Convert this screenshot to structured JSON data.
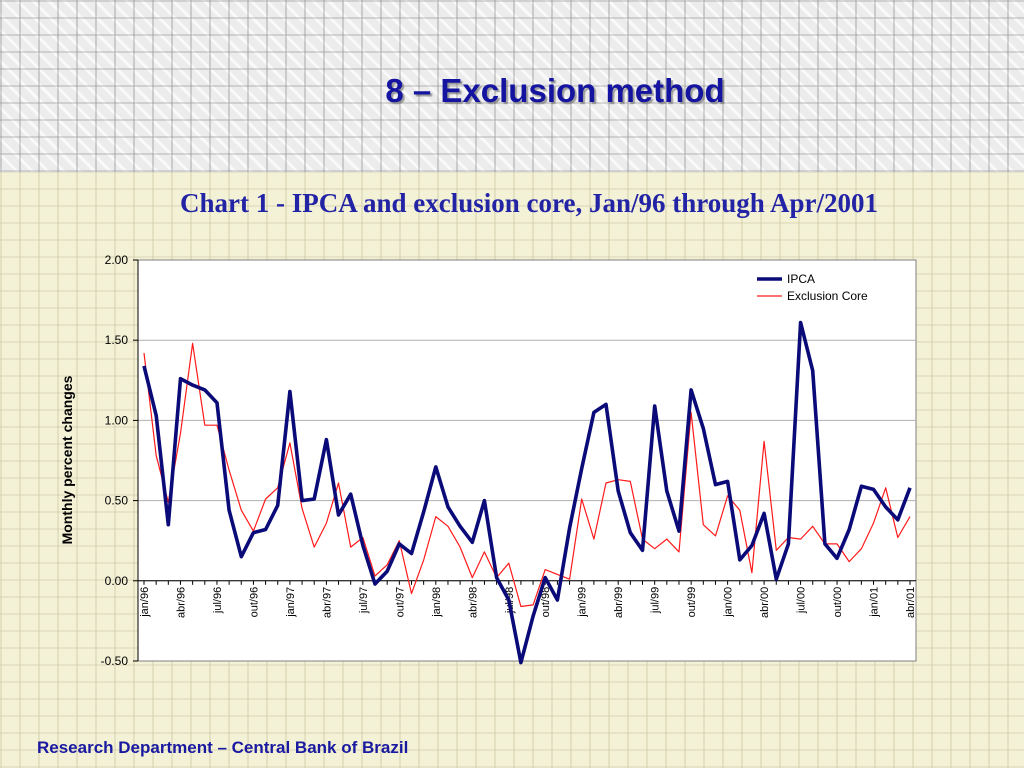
{
  "slide": {
    "title": "8 – Exclusion method",
    "footer": "Research Department – Central Bank of Brazil"
  },
  "colors": {
    "title": "#1414a0",
    "ipca": "#0a0a78",
    "core": "#ff1a1a",
    "content_bg": "#f3f1d6"
  },
  "chart_data": {
    "type": "line",
    "title": "Chart 1 - IPCA and exclusion core, Jan/96 through Apr/2001",
    "ylabel": "Monthly percent changes",
    "xlabel": "",
    "ylim": [
      -0.5,
      2.0
    ],
    "yticks": [
      "2.00",
      "1.50",
      "1.00",
      "0.50",
      "0.00",
      "-0.50"
    ],
    "grid": "horizontal",
    "legend_position": "top-right",
    "xtick_labels": [
      "jan/96",
      "abr/96",
      "jul/96",
      "out/96",
      "jan/97",
      "abr/97",
      "jul/97",
      "out/97",
      "jan/98",
      "abr/98",
      "jul/98",
      "out/98",
      "jan/99",
      "abr/99",
      "jul/99",
      "out/99",
      "jan/00",
      "abr/00",
      "jul/00",
      "out/00",
      "jan/01",
      "abr/01"
    ],
    "x": [
      "jan/96",
      "fev/96",
      "mar/96",
      "abr/96",
      "mai/96",
      "jun/96",
      "jul/96",
      "ago/96",
      "set/96",
      "out/96",
      "nov/96",
      "dez/96",
      "jan/97",
      "fev/97",
      "mar/97",
      "abr/97",
      "mai/97",
      "jun/97",
      "jul/97",
      "ago/97",
      "set/97",
      "out/97",
      "nov/97",
      "dez/97",
      "jan/98",
      "fev/98",
      "mar/98",
      "abr/98",
      "mai/98",
      "jun/98",
      "jul/98",
      "ago/98",
      "set/98",
      "out/98",
      "nov/98",
      "dez/98",
      "jan/99",
      "fev/99",
      "mar/99",
      "abr/99",
      "mai/99",
      "jun/99",
      "jul/99",
      "ago/99",
      "set/99",
      "out/99",
      "nov/99",
      "dez/99",
      "jan/00",
      "fev/00",
      "mar/00",
      "abr/00",
      "mai/00",
      "jun/00",
      "jul/00",
      "ago/00",
      "set/00",
      "out/00",
      "nov/00",
      "dez/00",
      "jan/01",
      "fev/01",
      "mar/01",
      "abr/01"
    ],
    "series": [
      {
        "name": "IPCA",
        "values": [
          1.34,
          1.03,
          0.35,
          1.26,
          1.22,
          1.19,
          1.11,
          0.44,
          0.15,
          0.3,
          0.32,
          0.47,
          1.18,
          0.5,
          0.51,
          0.88,
          0.41,
          0.54,
          0.22,
          -0.02,
          0.06,
          0.23,
          0.17,
          0.43,
          0.71,
          0.46,
          0.34,
          0.24,
          0.5,
          0.02,
          -0.12,
          -0.51,
          -0.22,
          0.02,
          -0.12,
          0.33,
          0.7,
          1.05,
          1.1,
          0.56,
          0.3,
          0.19,
          1.09,
          0.56,
          0.31,
          1.19,
          0.95,
          0.6,
          0.62,
          0.13,
          0.22,
          0.42,
          0.01,
          0.23,
          1.61,
          1.31,
          0.23,
          0.14,
          0.32,
          0.59,
          0.57,
          0.46,
          0.38,
          0.58
        ]
      },
      {
        "name": "Exclusion Core",
        "values": [
          1.42,
          0.78,
          0.49,
          0.92,
          1.48,
          0.97,
          0.97,
          0.69,
          0.44,
          0.31,
          0.51,
          0.58,
          0.86,
          0.45,
          0.21,
          0.36,
          0.61,
          0.21,
          0.27,
          0.03,
          0.1,
          0.25,
          -0.08,
          0.13,
          0.4,
          0.34,
          0.21,
          0.02,
          0.18,
          0.02,
          0.11,
          -0.16,
          -0.15,
          0.07,
          0.04,
          0.01,
          0.51,
          0.26,
          0.61,
          0.63,
          0.62,
          0.26,
          0.2,
          0.26,
          0.18,
          1.05,
          0.35,
          0.28,
          0.53,
          0.44,
          0.05,
          0.87,
          0.19,
          0.27,
          0.26,
          0.34,
          0.23,
          0.23,
          0.12,
          0.2,
          0.36,
          0.58,
          0.27,
          0.4
        ]
      }
    ]
  }
}
